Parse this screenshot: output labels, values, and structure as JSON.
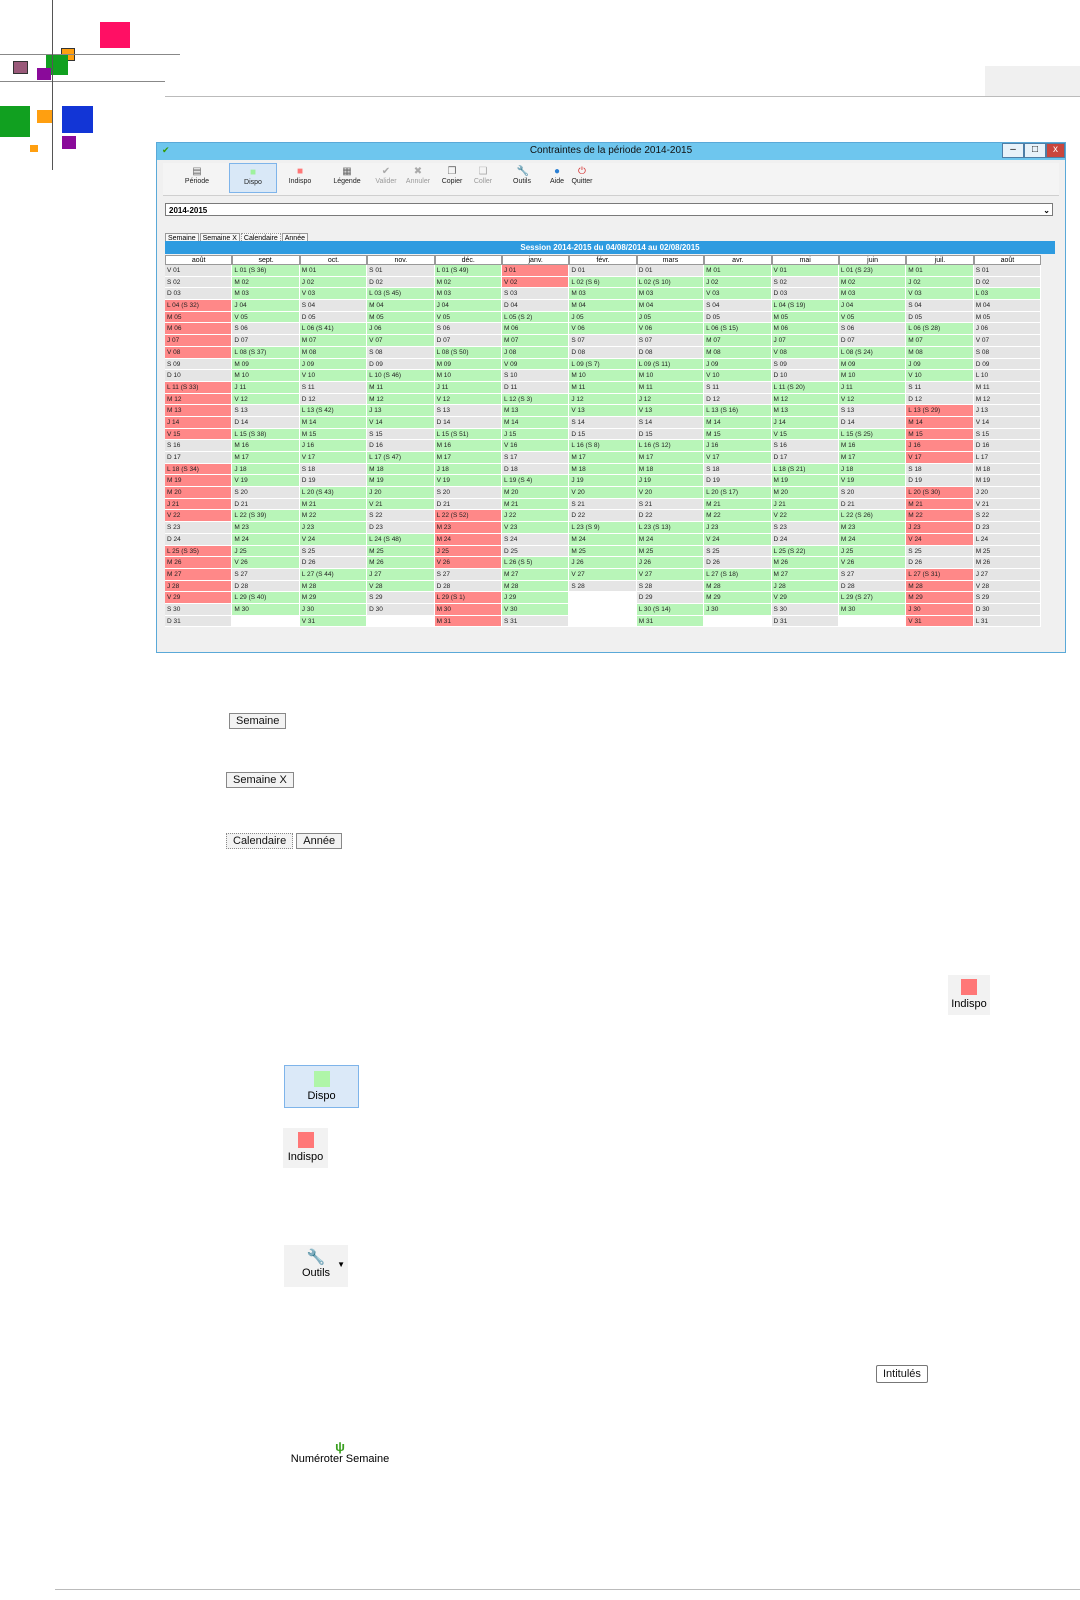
{
  "window": {
    "title": "Contraintes de la période 2014-2015",
    "controls": {
      "minimize": "–",
      "maximize": "□",
      "close": "x"
    }
  },
  "toolbar": [
    {
      "label": "Période",
      "icon": "calendar-icon"
    },
    {
      "label": "Dispo",
      "icon": "green-square-icon"
    },
    {
      "label": "Indispo",
      "icon": "red-square-icon"
    },
    {
      "label": "Légende",
      "icon": "legend-icon"
    },
    {
      "label": "Valider",
      "icon": "check-icon",
      "disabled": true
    },
    {
      "label": "Annuler",
      "icon": "x-icon",
      "disabled": true
    },
    {
      "label": "Copier",
      "icon": "copy-icon"
    },
    {
      "label": "Coller",
      "icon": "paste-icon",
      "disabled": true
    },
    {
      "label": "Outils",
      "icon": "wrench-icon"
    },
    {
      "label": "Aide",
      "icon": "help-icon"
    },
    {
      "label": "Quitter",
      "icon": "power-icon"
    }
  ],
  "period_select": {
    "value": "2014-2015",
    "arrow": "⌄"
  },
  "tabs": [
    "Semaine",
    "Semaine X",
    "Calendaire",
    "Année"
  ],
  "session_title": "Session 2014-2015 du 04/08/2014 au 02/08/2015",
  "months": [
    "août",
    "sept.",
    "oct.",
    "nov.",
    "déc.",
    "janv.",
    "févr.",
    "mars",
    "avr.",
    "mai",
    "juin",
    "juil.",
    "août"
  ],
  "calendar": [
    [
      "V 01|w",
      "S 02|w",
      "D 03|w",
      "L 04 (S 32)|r",
      "M 05|r",
      "M 06|r",
      "J 07|r",
      "V 08|r",
      "S 09|w",
      "D 10|w",
      "L 11 (S 33)|r",
      "M 12|r",
      "M 13|r",
      "J 14|r",
      "V 15|r",
      "S 16|w",
      "D 17|w",
      "L 18 (S 34)|r",
      "M 19|r",
      "M 20|r",
      "J 21|r",
      "V 22|r",
      "S 23|w",
      "D 24|w",
      "L 25 (S 35)|r",
      "M 26|r",
      "M 27|r",
      "J 28|r",
      "V 29|r",
      "S 30|w",
      "D 31|w"
    ],
    [
      "L 01 (S 36)|g",
      "M 02|g",
      "M 03|g",
      "J 04|g",
      "V 05|g",
      "S 06|w",
      "D 07|w",
      "L 08 (S 37)|g",
      "M 09|g",
      "M 10|g",
      "J 11|g",
      "V 12|g",
      "S 13|w",
      "D 14|w",
      "L 15 (S 38)|g",
      "M 16|g",
      "M 17|g",
      "J 18|g",
      "V 19|g",
      "S 20|w",
      "D 21|w",
      "L 22 (S 39)|g",
      "M 23|g",
      "M 24|g",
      "J 25|g",
      "V 26|g",
      "S 27|w",
      "D 28|w",
      "L 29 (S 40)|g",
      "M 30|g",
      "|e"
    ],
    [
      "M 01|g",
      "J 02|g",
      "V 03|g",
      "S 04|w",
      "D 05|w",
      "L 06 (S 41)|g",
      "M 07|g",
      "M 08|g",
      "J 09|g",
      "V 10|g",
      "S 11|w",
      "D 12|w",
      "L 13 (S 42)|g",
      "M 14|g",
      "M 15|g",
      "J 16|g",
      "V 17|g",
      "S 18|w",
      "D 19|w",
      "L 20 (S 43)|g",
      "M 21|g",
      "M 22|g",
      "J 23|g",
      "V 24|g",
      "S 25|w",
      "D 26|w",
      "L 27 (S 44)|g",
      "M 28|g",
      "M 29|g",
      "J 30|g",
      "V 31|g"
    ],
    [
      "S 01|w",
      "D 02|w",
      "L 03 (S 45)|g",
      "M 04|g",
      "M 05|g",
      "J 06|g",
      "V 07|g",
      "S 08|w",
      "D 09|w",
      "L 10 (S 46)|g",
      "M 11|g",
      "M 12|g",
      "J 13|g",
      "V 14|g",
      "S 15|w",
      "D 16|w",
      "L 17 (S 47)|g",
      "M 18|g",
      "M 19|g",
      "J 20|g",
      "V 21|g",
      "S 22|w",
      "D 23|w",
      "L 24 (S 48)|g",
      "M 25|g",
      "M 26|g",
      "J 27|g",
      "V 28|g",
      "S 29|w",
      "D 30|w",
      "|e"
    ],
    [
      "L 01 (S 49)|g",
      "M 02|g",
      "M 03|g",
      "J 04|g",
      "V 05|g",
      "S 06|w",
      "D 07|w",
      "L 08 (S 50)|g",
      "M 09|g",
      "M 10|g",
      "J 11|g",
      "V 12|g",
      "S 13|w",
      "D 14|w",
      "L 15 (S 51)|g",
      "M 16|g",
      "M 17|g",
      "J 18|g",
      "V 19|g",
      "S 20|w",
      "D 21|w",
      "L 22 (S 52)|r",
      "M 23|r",
      "M 24|r",
      "J 25|r",
      "V 26|r",
      "S 27|w",
      "D 28|w",
      "L 29 (S 1)|r",
      "M 30|r",
      "M 31|r"
    ],
    [
      "J 01|r",
      "V 02|r",
      "S 03|w",
      "D 04|w",
      "L 05 (S 2)|g",
      "M 06|g",
      "M 07|g",
      "J 08|g",
      "V 09|g",
      "S 10|w",
      "D 11|w",
      "L 12 (S 3)|g",
      "M 13|g",
      "M 14|g",
      "J 15|g",
      "V 16|g",
      "S 17|w",
      "D 18|w",
      "L 19 (S 4)|g",
      "M 20|g",
      "M 21|g",
      "J 22|g",
      "V 23|g",
      "S 24|w",
      "D 25|w",
      "L 26 (S 5)|g",
      "M 27|g",
      "M 28|g",
      "J 29|g",
      "V 30|g",
      "S 31|w"
    ],
    [
      "D 01|w",
      "L 02 (S 6)|g",
      "M 03|g",
      "M 04|g",
      "J 05|g",
      "V 06|g",
      "S 07|w",
      "D 08|w",
      "L 09 (S 7)|g",
      "M 10|g",
      "M 11|g",
      "J 12|g",
      "V 13|g",
      "S 14|w",
      "D 15|w",
      "L 16 (S 8)|g",
      "M 17|g",
      "M 18|g",
      "J 19|g",
      "V 20|g",
      "S 21|w",
      "D 22|w",
      "L 23 (S 9)|g",
      "M 24|g",
      "M 25|g",
      "J 26|g",
      "V 27|g",
      "S 28|w",
      "|e",
      "|e",
      "|e"
    ],
    [
      "D 01|w",
      "L 02 (S 10)|g",
      "M 03|g",
      "M 04|g",
      "J 05|g",
      "V 06|g",
      "S 07|w",
      "D 08|w",
      "L 09 (S 11)|g",
      "M 10|g",
      "M 11|g",
      "J 12|g",
      "V 13|g",
      "S 14|w",
      "D 15|w",
      "L 16 (S 12)|g",
      "M 17|g",
      "M 18|g",
      "J 19|g",
      "V 20|g",
      "S 21|w",
      "D 22|w",
      "L 23 (S 13)|g",
      "M 24|g",
      "M 25|g",
      "J 26|g",
      "V 27|g",
      "S 28|w",
      "D 29|w",
      "L 30 (S 14)|g",
      "M 31|g"
    ],
    [
      "M 01|g",
      "J 02|g",
      "V 03|g",
      "S 04|w",
      "D 05|w",
      "L 06 (S 15)|g",
      "M 07|g",
      "M 08|g",
      "J 09|g",
      "V 10|g",
      "S 11|w",
      "D 12|w",
      "L 13 (S 16)|g",
      "M 14|g",
      "M 15|g",
      "J 16|g",
      "V 17|g",
      "S 18|w",
      "D 19|w",
      "L 20 (S 17)|g",
      "M 21|g",
      "M 22|g",
      "J 23|g",
      "V 24|g",
      "S 25|w",
      "D 26|w",
      "L 27 (S 18)|g",
      "M 28|g",
      "M 29|g",
      "J 30|g",
      "|e"
    ],
    [
      "V 01|g",
      "S 02|w",
      "D 03|w",
      "L 04 (S 19)|g",
      "M 05|g",
      "M 06|g",
      "J 07|g",
      "V 08|g",
      "S 09|w",
      "D 10|w",
      "L 11 (S 20)|g",
      "M 12|g",
      "M 13|g",
      "J 14|g",
      "V 15|g",
      "S 16|w",
      "D 17|w",
      "L 18 (S 21)|g",
      "M 19|g",
      "M 20|g",
      "J 21|g",
      "V 22|g",
      "S 23|w",
      "D 24|w",
      "L 25 (S 22)|g",
      "M 26|g",
      "M 27|g",
      "J 28|g",
      "V 29|g",
      "S 30|w",
      "D 31|w"
    ],
    [
      "L 01 (S 23)|g",
      "M 02|g",
      "M 03|g",
      "J 04|g",
      "V 05|g",
      "S 06|w",
      "D 07|w",
      "L 08 (S 24)|g",
      "M 09|g",
      "M 10|g",
      "J 11|g",
      "V 12|g",
      "S 13|w",
      "D 14|w",
      "L 15 (S 25)|g",
      "M 16|g",
      "M 17|g",
      "J 18|g",
      "V 19|g",
      "S 20|w",
      "D 21|w",
      "L 22 (S 26)|g",
      "M 23|g",
      "M 24|g",
      "J 25|g",
      "V 26|g",
      "S 27|w",
      "D 28|w",
      "L 29 (S 27)|g",
      "M 30|g",
      "|e"
    ],
    [
      "M 01|g",
      "J 02|g",
      "V 03|g",
      "S 04|w",
      "D 05|w",
      "L 06 (S 28)|g",
      "M 07|g",
      "M 08|g",
      "J 09|g",
      "V 10|g",
      "S 11|w",
      "D 12|w",
      "L 13 (S 29)|r",
      "M 14|r",
      "M 15|r",
      "J 16|r",
      "V 17|r",
      "S 18|w",
      "D 19|w",
      "L 20 (S 30)|r",
      "M 21|r",
      "M 22|r",
      "J 23|r",
      "V 24|r",
      "S 25|w",
      "D 26|w",
      "L 27 (S 31)|r",
      "M 28|r",
      "M 29|r",
      "J 30|r",
      "V 31|r"
    ],
    [
      "S 01|w",
      "D 02|w",
      "L 03|g",
      "M 04|w",
      "M 05|w",
      "J 06|w",
      "V 07|w",
      "S 08|w",
      "D 09|w",
      "L 10|w",
      "M 11|w",
      "M 12|w",
      "J 13|w",
      "V 14|w",
      "S 15|w",
      "D 16|w",
      "L 17|w",
      "M 18|w",
      "M 19|w",
      "J 20|w",
      "V 21|w",
      "S 22|w",
      "D 23|w",
      "L 24|w",
      "M 25|w",
      "M 26|w",
      "J 27|w",
      "V 28|w",
      "S 29|w",
      "D 30|w",
      "L 31|w"
    ]
  ],
  "snippets": {
    "semaine": "Semaine",
    "semaine_x": "Semaine X",
    "calendaire": "Calendaire",
    "annee": "Année",
    "indispo_right": "Indispo",
    "dispo": "Dispo",
    "indispo": "Indispo",
    "outils": "Outils",
    "intitules": "Intitulés",
    "numeroter": "Numéroter Semaine"
  },
  "colors": {
    "available": "#b8f5b8",
    "unavailable": "#ff8888",
    "weekend": "#e5e5e5",
    "session_bar": "#2e9be0"
  }
}
